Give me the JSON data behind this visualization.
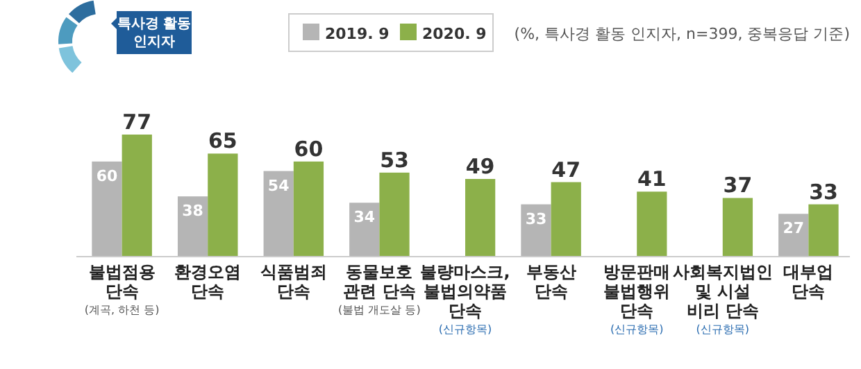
{
  "chart_data": {
    "type": "bar",
    "relative": false,
    "categories": [
      "불법점용\n단속\n\n(계곡, 하천 등)",
      "환경오염\n단속",
      "식품범죄\n단속",
      "동물보호\n관련 단속\n\n(불법 개도살 등)",
      "불량마스크,\n불법의약품\n단속\n\n(신규항목)",
      "부동산\n단속",
      "방문판매\n불법행위\n단속\n\n(신규항목)",
      "사회복지법인\n및 시설\n비리 단속\n\n(신규항목)",
      "대부업\n단속"
    ],
    "series": [
      {
        "name": "2019. 9",
        "color": "#b5b5b5",
        "values": [
          60,
          38,
          54,
          34,
          null,
          33,
          null,
          null,
          27
        ]
      },
      {
        "name": "2020. 9",
        "color": "#8cb04a",
        "values": [
          77,
          65,
          60,
          53,
          49,
          47,
          41,
          37,
          33
        ]
      }
    ],
    "data_labels": true,
    "legend": "top",
    "annotations": [
      "특사경 활동\n인지자",
      "(%, 특사경 활동 인지자, n=399, 중복응답 기준)"
    ]
  }
}
